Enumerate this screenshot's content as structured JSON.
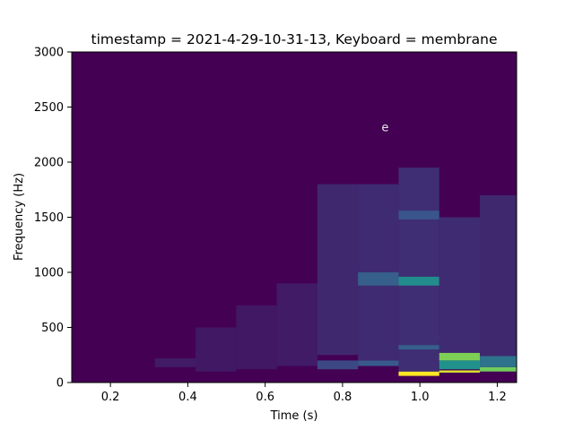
{
  "chart_data": {
    "type": "heatmap",
    "title": "timestamp = 2021-4-29-10-31-13, Keyboard = membrane",
    "xlabel": "Time (s)",
    "ylabel": "Frequency (Hz)",
    "xlim": [
      0.1,
      1.25
    ],
    "ylim": [
      0,
      3000
    ],
    "xticks": [
      0.2,
      0.4,
      0.6,
      0.8,
      1.0,
      1.2
    ],
    "xtick_labels": [
      "0.2",
      "0.4",
      "0.6",
      "0.8",
      "1.0",
      "1.2"
    ],
    "yticks": [
      0,
      500,
      1000,
      1500,
      2000,
      2500,
      3000
    ],
    "ytick_labels": [
      "0",
      "500",
      "1000",
      "1500",
      "2000",
      "2500",
      "3000"
    ],
    "colormap": "viridis",
    "background_color": "#440154",
    "annotation": {
      "text": "e",
      "x": 0.91,
      "y": 2320
    },
    "time_frames": [
      0.105,
      0.21,
      0.315,
      0.42,
      0.525,
      0.63,
      0.735,
      0.84,
      0.945,
      1.05,
      1.155
    ],
    "frame_width_s": 0.105,
    "bands": [
      {
        "t": 0.315,
        "f0": 140,
        "f1": 220,
        "level": 0.08
      },
      {
        "t": 0.42,
        "f0": 100,
        "f1": 500,
        "level": 0.07
      },
      {
        "t": 0.525,
        "f0": 120,
        "f1": 700,
        "level": 0.07
      },
      {
        "t": 0.63,
        "f0": 150,
        "f1": 900,
        "level": 0.08
      },
      {
        "t": 0.735,
        "f0": 120,
        "f1": 200,
        "level": 0.22
      },
      {
        "t": 0.735,
        "f0": 250,
        "f1": 1800,
        "level": 0.12
      },
      {
        "t": 0.84,
        "f0": 150,
        "f1": 200,
        "level": 0.28
      },
      {
        "t": 0.84,
        "f0": 200,
        "f1": 1800,
        "level": 0.13
      },
      {
        "t": 0.84,
        "f0": 880,
        "f1": 1000,
        "level": 0.3
      },
      {
        "t": 0.945,
        "f0": 60,
        "f1": 100,
        "level": 1.0
      },
      {
        "t": 0.945,
        "f0": 100,
        "f1": 1950,
        "level": 0.14
      },
      {
        "t": 0.945,
        "f0": 880,
        "f1": 960,
        "level": 0.48
      },
      {
        "t": 0.945,
        "f0": 1480,
        "f1": 1560,
        "level": 0.26
      },
      {
        "t": 0.945,
        "f0": 300,
        "f1": 340,
        "level": 0.3
      },
      {
        "t": 1.05,
        "f0": 90,
        "f1": 110,
        "level": 0.95
      },
      {
        "t": 1.05,
        "f0": 200,
        "f1": 270,
        "level": 0.8
      },
      {
        "t": 1.05,
        "f0": 120,
        "f1": 200,
        "level": 0.5
      },
      {
        "t": 1.05,
        "f0": 380,
        "f1": 420,
        "level": 0.45
      },
      {
        "t": 1.05,
        "f0": 270,
        "f1": 1500,
        "level": 0.13
      },
      {
        "t": 1.155,
        "f0": 100,
        "f1": 140,
        "level": 0.78
      },
      {
        "t": 1.155,
        "f0": 140,
        "f1": 240,
        "level": 0.38
      },
      {
        "t": 1.155,
        "f0": 240,
        "f1": 1700,
        "level": 0.12
      }
    ]
  }
}
